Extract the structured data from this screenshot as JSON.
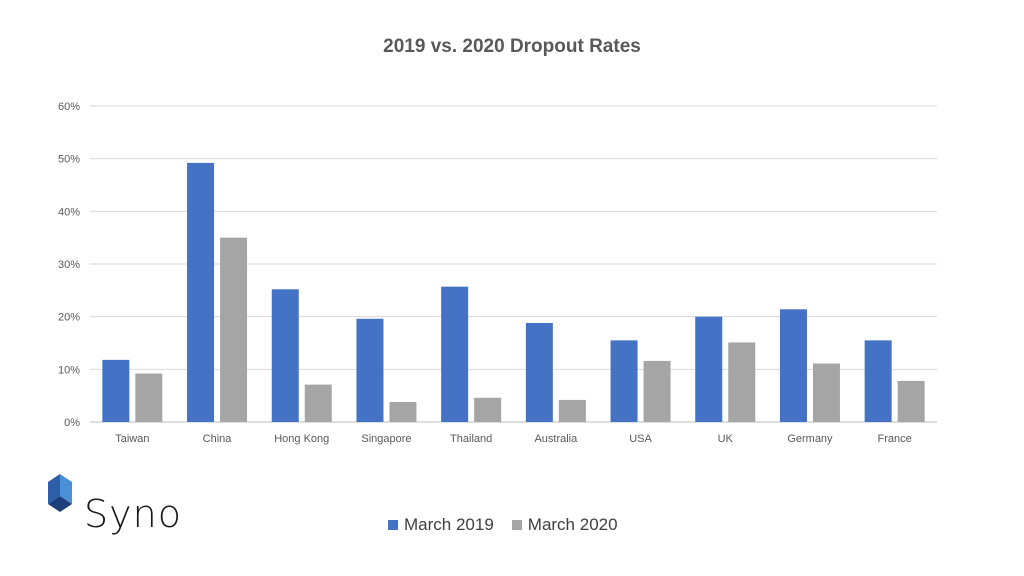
{
  "chart_data": {
    "type": "bar",
    "title": "2019 vs. 2020 Dropout Rates",
    "categories": [
      "Taiwan",
      "China",
      "Hong Kong",
      "Singapore",
      "Thailand",
      "Australia",
      "USA",
      "UK",
      "Germany",
      "France"
    ],
    "series": [
      {
        "name": "March 2019",
        "color": "#4472c4",
        "values": [
          11.8,
          49.2,
          25.2,
          19.6,
          25.7,
          18.8,
          15.5,
          20.0,
          21.4,
          15.5
        ]
      },
      {
        "name": "March 2020",
        "color": "#a5a5a5",
        "values": [
          9.2,
          35.0,
          7.1,
          3.8,
          4.6,
          4.2,
          11.6,
          15.1,
          11.1,
          7.8
        ]
      }
    ],
    "ylim": [
      0,
      60
    ],
    "yticks": [
      "0%",
      "10%",
      "20%",
      "30%",
      "40%",
      "50%",
      "60%"
    ],
    "grid": true,
    "legend": "bottom"
  },
  "logo": {
    "text": "Syno",
    "icon": "cube-logo-icon"
  }
}
